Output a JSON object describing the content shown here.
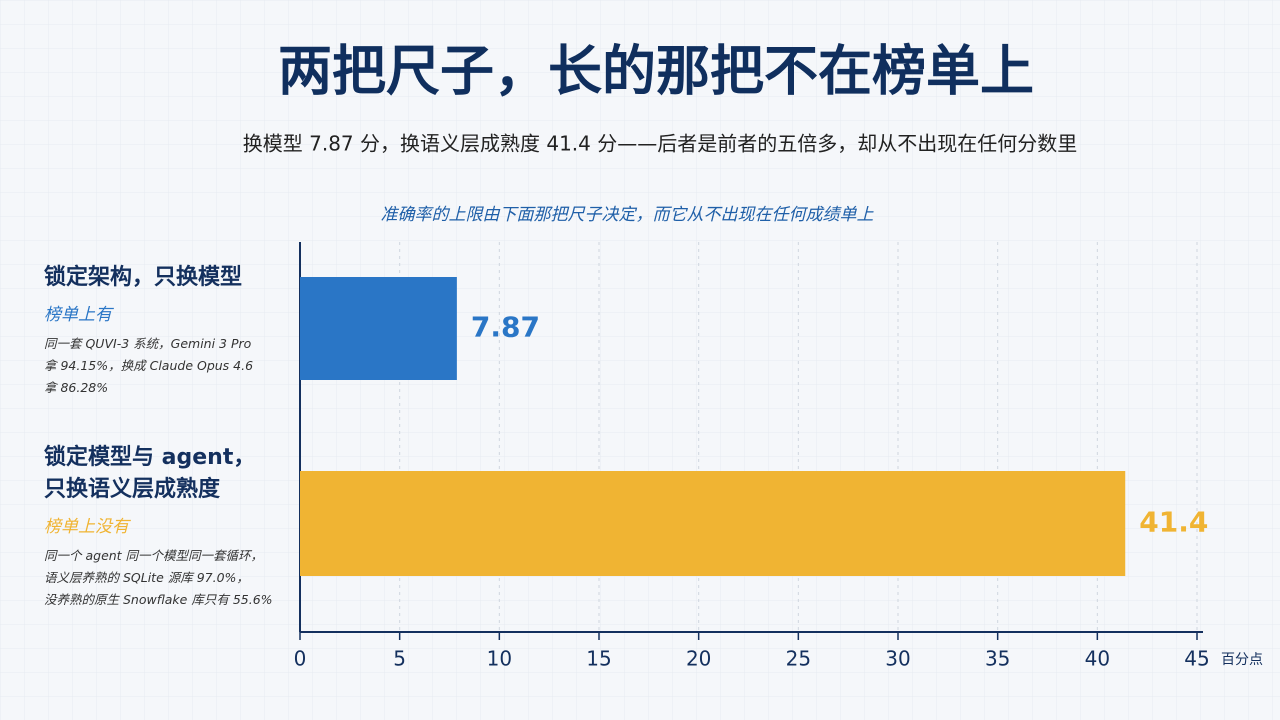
{
  "chart_data": {
    "type": "bar",
    "orientation": "horizontal",
    "title": "两把尺子，长的那把不在榜单上",
    "subtitle": "换模型 7.87 分，换语义层成熟度 41.4 分——后者是前者的五倍多，却从不出现在任何分数里",
    "annotation": "准确率的上限由下面那把尺子决定，而它从不出现在任何成绩单上",
    "categories": [
      "锁定架构，只换模型",
      "锁定模型与 agent，\n只换语义层成熟度"
    ],
    "category_tags": [
      "榜单上有",
      "榜单上没有"
    ],
    "category_notes": [
      "同一套 QUVI-3 系统，Gemini 3 Pro\n拿 94.15%，换成 Claude Opus 4.6\n拿 86.28%",
      "同一个 agent 同一个模型同一套循环，\n语义层养熟的 SQLite 源库 97.0%，\n没养熟的原生 Snowflake 库只有 55.6%"
    ],
    "values": [
      7.87,
      41.4
    ],
    "colors": [
      "#2a76c6",
      "#f0b433"
    ],
    "xlim": [
      0,
      45
    ],
    "xticks": [
      0,
      5,
      10,
      15,
      20,
      25,
      30,
      35,
      40,
      45
    ],
    "x_unit_label": "百分点",
    "grid": true
  }
}
